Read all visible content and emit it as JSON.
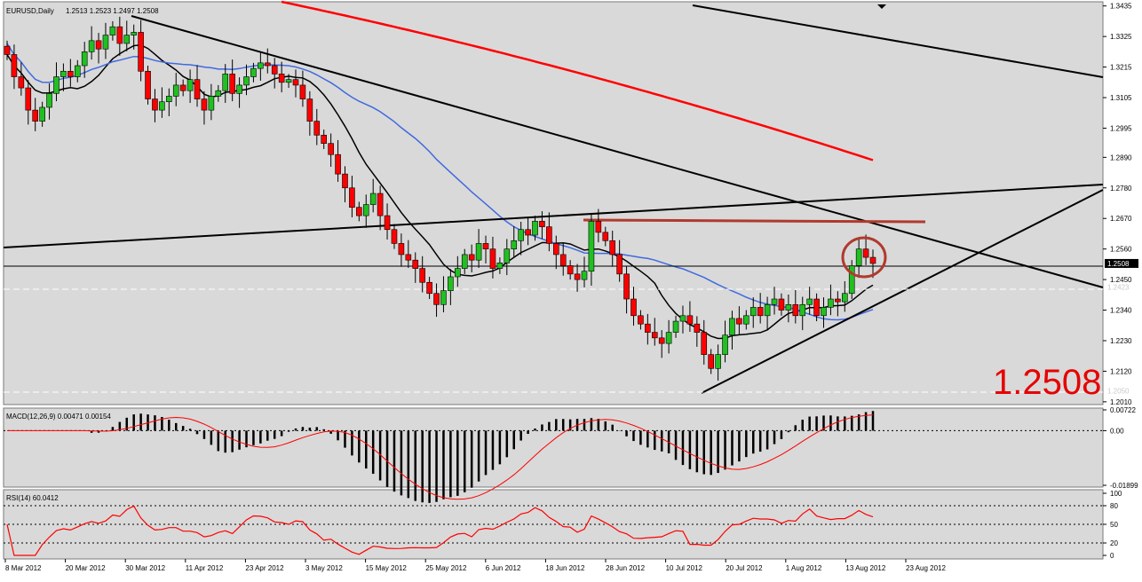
{
  "header": {
    "title": "EURUSD,Daily",
    "ohlc": "1.2513 1.2523 1.2497 1.2508"
  },
  "current_price_label": "1.2508",
  "big_price": "1.2508",
  "faded_labels": {
    "upper": "1.2423",
    "lower": "1.2050"
  },
  "macd": {
    "label": "MACD(12,26,9) 0.00471 0.00154",
    "ticks": [
      "0.00722",
      "0.00",
      "-0.01899"
    ]
  },
  "rsi": {
    "label": "RSI(14) 60.0412",
    "ticks": [
      "100",
      "80",
      "50",
      "20",
      "0"
    ]
  },
  "colors": {
    "background": "#d9d9d9",
    "bull": "#21c021",
    "bear": "#ff0000",
    "ma_red": "#ff0000",
    "ma_blue": "#3f6ae0",
    "ma_black": "#000000",
    "resistance_line": "#b03a2e",
    "circle": "#b03a2e",
    "signal": "#ff0000",
    "rsi_line": "#ff0000",
    "big_price": "#e60000"
  },
  "chart_data": {
    "type": "candlestick",
    "symbol": "EURUSD",
    "timeframe": "Daily",
    "y_ticks": [
      "1.3435",
      "1.3325",
      "1.3215",
      "1.3105",
      "1.2995",
      "1.2890",
      "1.2780",
      "1.2670",
      "1.2560",
      "1.2450",
      "1.2340",
      "1.2230",
      "1.2120",
      "1.2010"
    ],
    "ylim": [
      1.2,
      1.345
    ],
    "x_ticks": [
      "8 Mar 2012",
      "20 Mar 2012",
      "30 Mar 2012",
      "11 Apr 2012",
      "23 Apr 2012",
      "3 May 2012",
      "15 May 2012",
      "25 May 2012",
      "6 Jun 2012",
      "18 Jun 2012",
      "28 Jun 2012",
      "10 Jul 2012",
      "20 Jul 2012",
      "1 Aug 2012",
      "13 Aug 2012",
      "23 Aug 2012"
    ],
    "close_series": [
      1.326,
      1.318,
      1.314,
      1.306,
      1.302,
      1.307,
      1.312,
      1.318,
      1.32,
      1.318,
      1.322,
      1.327,
      1.331,
      1.328,
      1.333,
      1.336,
      1.33,
      1.333,
      1.334,
      1.32,
      1.31,
      1.306,
      1.309,
      1.311,
      1.315,
      1.313,
      1.317,
      1.31,
      1.306,
      1.311,
      1.313,
      1.319,
      1.312,
      1.315,
      1.318,
      1.321,
      1.323,
      1.322,
      1.319,
      1.316,
      1.317,
      1.315,
      1.31,
      1.302,
      1.297,
      1.294,
      1.29,
      1.283,
      1.278,
      1.271,
      1.268,
      1.272,
      1.276,
      1.268,
      1.263,
      1.258,
      1.254,
      1.252,
      1.249,
      1.244,
      1.24,
      1.236,
      1.241,
      1.246,
      1.249,
      1.254,
      1.252,
      1.258,
      1.256,
      1.249,
      1.251,
      1.256,
      1.259,
      1.263,
      1.261,
      1.266,
      1.264,
      1.258,
      1.254,
      1.25,
      1.247,
      1.245,
      1.248,
      1.266,
      1.262,
      1.259,
      1.254,
      1.247,
      1.238,
      1.232,
      1.229,
      1.226,
      1.224,
      1.222,
      1.226,
      1.23,
      1.232,
      1.229,
      1.226,
      1.218,
      1.213,
      1.218,
      1.225,
      1.231,
      1.229,
      1.232,
      1.235,
      1.232,
      1.236,
      1.238,
      1.234,
      1.236,
      1.232,
      1.236,
      1.238,
      1.232,
      1.235,
      1.238,
      1.237,
      1.24,
      1.25,
      1.256,
      1.253,
      1.2508
    ],
    "annotations": [
      "1.2508"
    ],
    "indicators": [
      "MACD(12,26,9) 0.00471 0.00154",
      "RSI(14) 60.0412"
    ],
    "grid": false
  }
}
